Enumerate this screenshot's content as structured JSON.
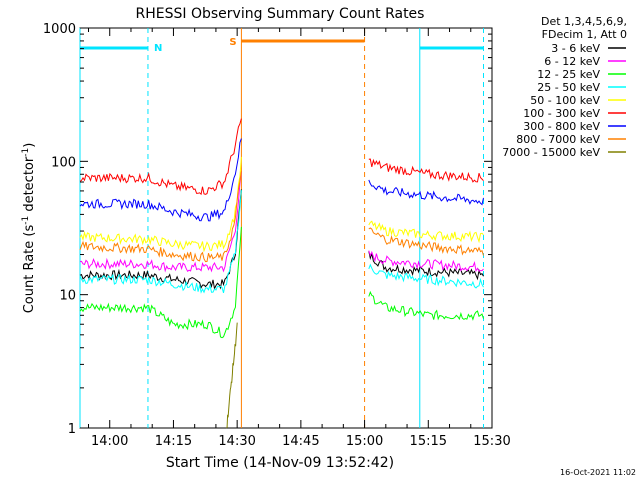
{
  "chart_data": {
    "type": "line",
    "title": "RHESSI Observing Summary Count Rates",
    "xlabel": "Start Time (14-Nov-09 13:52:42)",
    "ylabel_main": "Count Rate (s",
    "ylabel_sup1": "-1",
    "ylabel_mid": " detector",
    "ylabel_sup2": "-1",
    "ylabel_end": ")",
    "yscale": "log",
    "ylim": [
      1,
      1000
    ],
    "xlim_minutes": [
      -7,
      90
    ],
    "xticks": [
      {
        "label": "14:00",
        "min": 0
      },
      {
        "label": "14:15",
        "min": 15
      },
      {
        "label": "14:30",
        "min": 30
      },
      {
        "label": "14:45",
        "min": 45
      },
      {
        "label": "15:00",
        "min": 60
      },
      {
        "label": "15:15",
        "min": 75
      },
      {
        "label": "15:30",
        "min": 90
      }
    ],
    "yticks": [
      {
        "label": "1",
        "value": 1
      },
      {
        "label": "10",
        "value": 10
      },
      {
        "label": "100",
        "value": 100
      },
      {
        "label": "1000",
        "value": 1000
      }
    ],
    "legend_header": [
      "Det 1,3,4,5,6,9,",
      "FDecim 1, Att 0"
    ],
    "legend_position": "right",
    "timestamp": "16-Oct-2021 11:02",
    "flags": [
      {
        "label": "N",
        "color": "#00e5ff",
        "segments": [
          [
            -7,
            9
          ],
          [
            73,
            88
          ]
        ]
      },
      {
        "label": "S",
        "color": "#ff8000",
        "segments": [
          [
            31,
            60
          ]
        ]
      }
    ],
    "boundaries": [
      {
        "min": -7,
        "color": "#00e5ff",
        "style": "solid"
      },
      {
        "min": 9,
        "color": "#00e5ff",
        "style": "dashed"
      },
      {
        "min": 31,
        "color": "#ff8000",
        "style": "solid"
      },
      {
        "min": 60,
        "color": "#ff8000",
        "style": "dashed"
      },
      {
        "min": 73,
        "color": "#00e5ff",
        "style": "solid"
      },
      {
        "min": 88,
        "color": "#00e5ff",
        "style": "dashed"
      }
    ],
    "series": [
      {
        "name": "3 - 6 keV",
        "color": "#000000",
        "seg1": {
          "t": [
            -7,
            9,
            15,
            23,
            27,
            29.5,
            31
          ],
          "y": [
            14,
            14,
            13,
            12,
            12,
            20,
            60
          ]
        },
        "seg2": {
          "t": [
            61,
            65,
            75,
            88
          ],
          "y": [
            20,
            16,
            15,
            14
          ]
        }
      },
      {
        "name": "6 - 12 keV",
        "color": "#ff00ff",
        "seg1": {
          "t": [
            -7,
            9,
            15,
            23,
            27,
            29.5,
            31
          ],
          "y": [
            17,
            17,
            16,
            16,
            16,
            30,
            80
          ]
        },
        "seg2": {
          "t": [
            61,
            65,
            75,
            88
          ],
          "y": [
            20,
            18,
            17,
            16
          ]
        }
      },
      {
        "name": "12 - 25 keV",
        "color": "#00ff00",
        "seg1": {
          "t": [
            -7,
            9,
            15,
            23,
            27,
            29.5,
            31
          ],
          "y": [
            8,
            8,
            6,
            6,
            5,
            8,
            30
          ]
        },
        "seg2": {
          "t": [
            61,
            65,
            75,
            88
          ],
          "y": [
            10,
            8,
            7,
            7
          ]
        }
      },
      {
        "name": "25 - 50 keV",
        "color": "#00ffff",
        "seg1": {
          "t": [
            -7,
            9,
            15,
            23,
            27,
            29.5,
            31
          ],
          "y": [
            13,
            13,
            12,
            11,
            11,
            20,
            60
          ]
        },
        "seg2": {
          "t": [
            61,
            65,
            75,
            88
          ],
          "y": [
            16,
            14,
            13,
            12
          ]
        }
      },
      {
        "name": "50 - 100 keV",
        "color": "#ffff00",
        "seg1": {
          "t": [
            -7,
            9,
            15,
            23,
            27,
            29.5,
            31
          ],
          "y": [
            27,
            26,
            24,
            23,
            24,
            40,
            100
          ]
        },
        "seg2": {
          "t": [
            61,
            65,
            75,
            88
          ],
          "y": [
            34,
            30,
            28,
            27
          ]
        }
      },
      {
        "name": "100 - 300 keV",
        "color": "#ff0000",
        "seg1": {
          "t": [
            -7,
            9,
            15,
            23,
            27,
            29.5,
            31
          ],
          "y": [
            75,
            75,
            65,
            60,
            70,
            130,
            210
          ]
        },
        "seg2": {
          "t": [
            61,
            65,
            75,
            88
          ],
          "y": [
            100,
            90,
            80,
            75
          ]
        }
      },
      {
        "name": "300 - 800 keV",
        "color": "#0000ff",
        "seg1": {
          "t": [
            -7,
            9,
            15,
            23,
            27,
            29.5,
            31
          ],
          "y": [
            48,
            48,
            42,
            38,
            42,
            80,
            150
          ]
        },
        "seg2": {
          "t": [
            61,
            65,
            75,
            88
          ],
          "y": [
            70,
            60,
            55,
            50
          ]
        }
      },
      {
        "name": "800 - 7000 keV",
        "color": "#ff8000",
        "seg1": {
          "t": [
            -7,
            9,
            15,
            23,
            27,
            29.5,
            31
          ],
          "y": [
            23,
            22,
            20,
            19,
            19,
            35,
            90
          ]
        },
        "seg2": {
          "t": [
            61,
            65,
            75,
            88
          ],
          "y": [
            30,
            26,
            23,
            21
          ]
        }
      },
      {
        "name": "7000 - 15000 keV",
        "color": "#808000",
        "seg1": {
          "t": [
            27.5,
            28.5,
            29.5,
            30
          ],
          "y": [
            1,
            2,
            4,
            6
          ]
        },
        "seg2": {
          "t": [],
          "y": []
        }
      }
    ]
  }
}
